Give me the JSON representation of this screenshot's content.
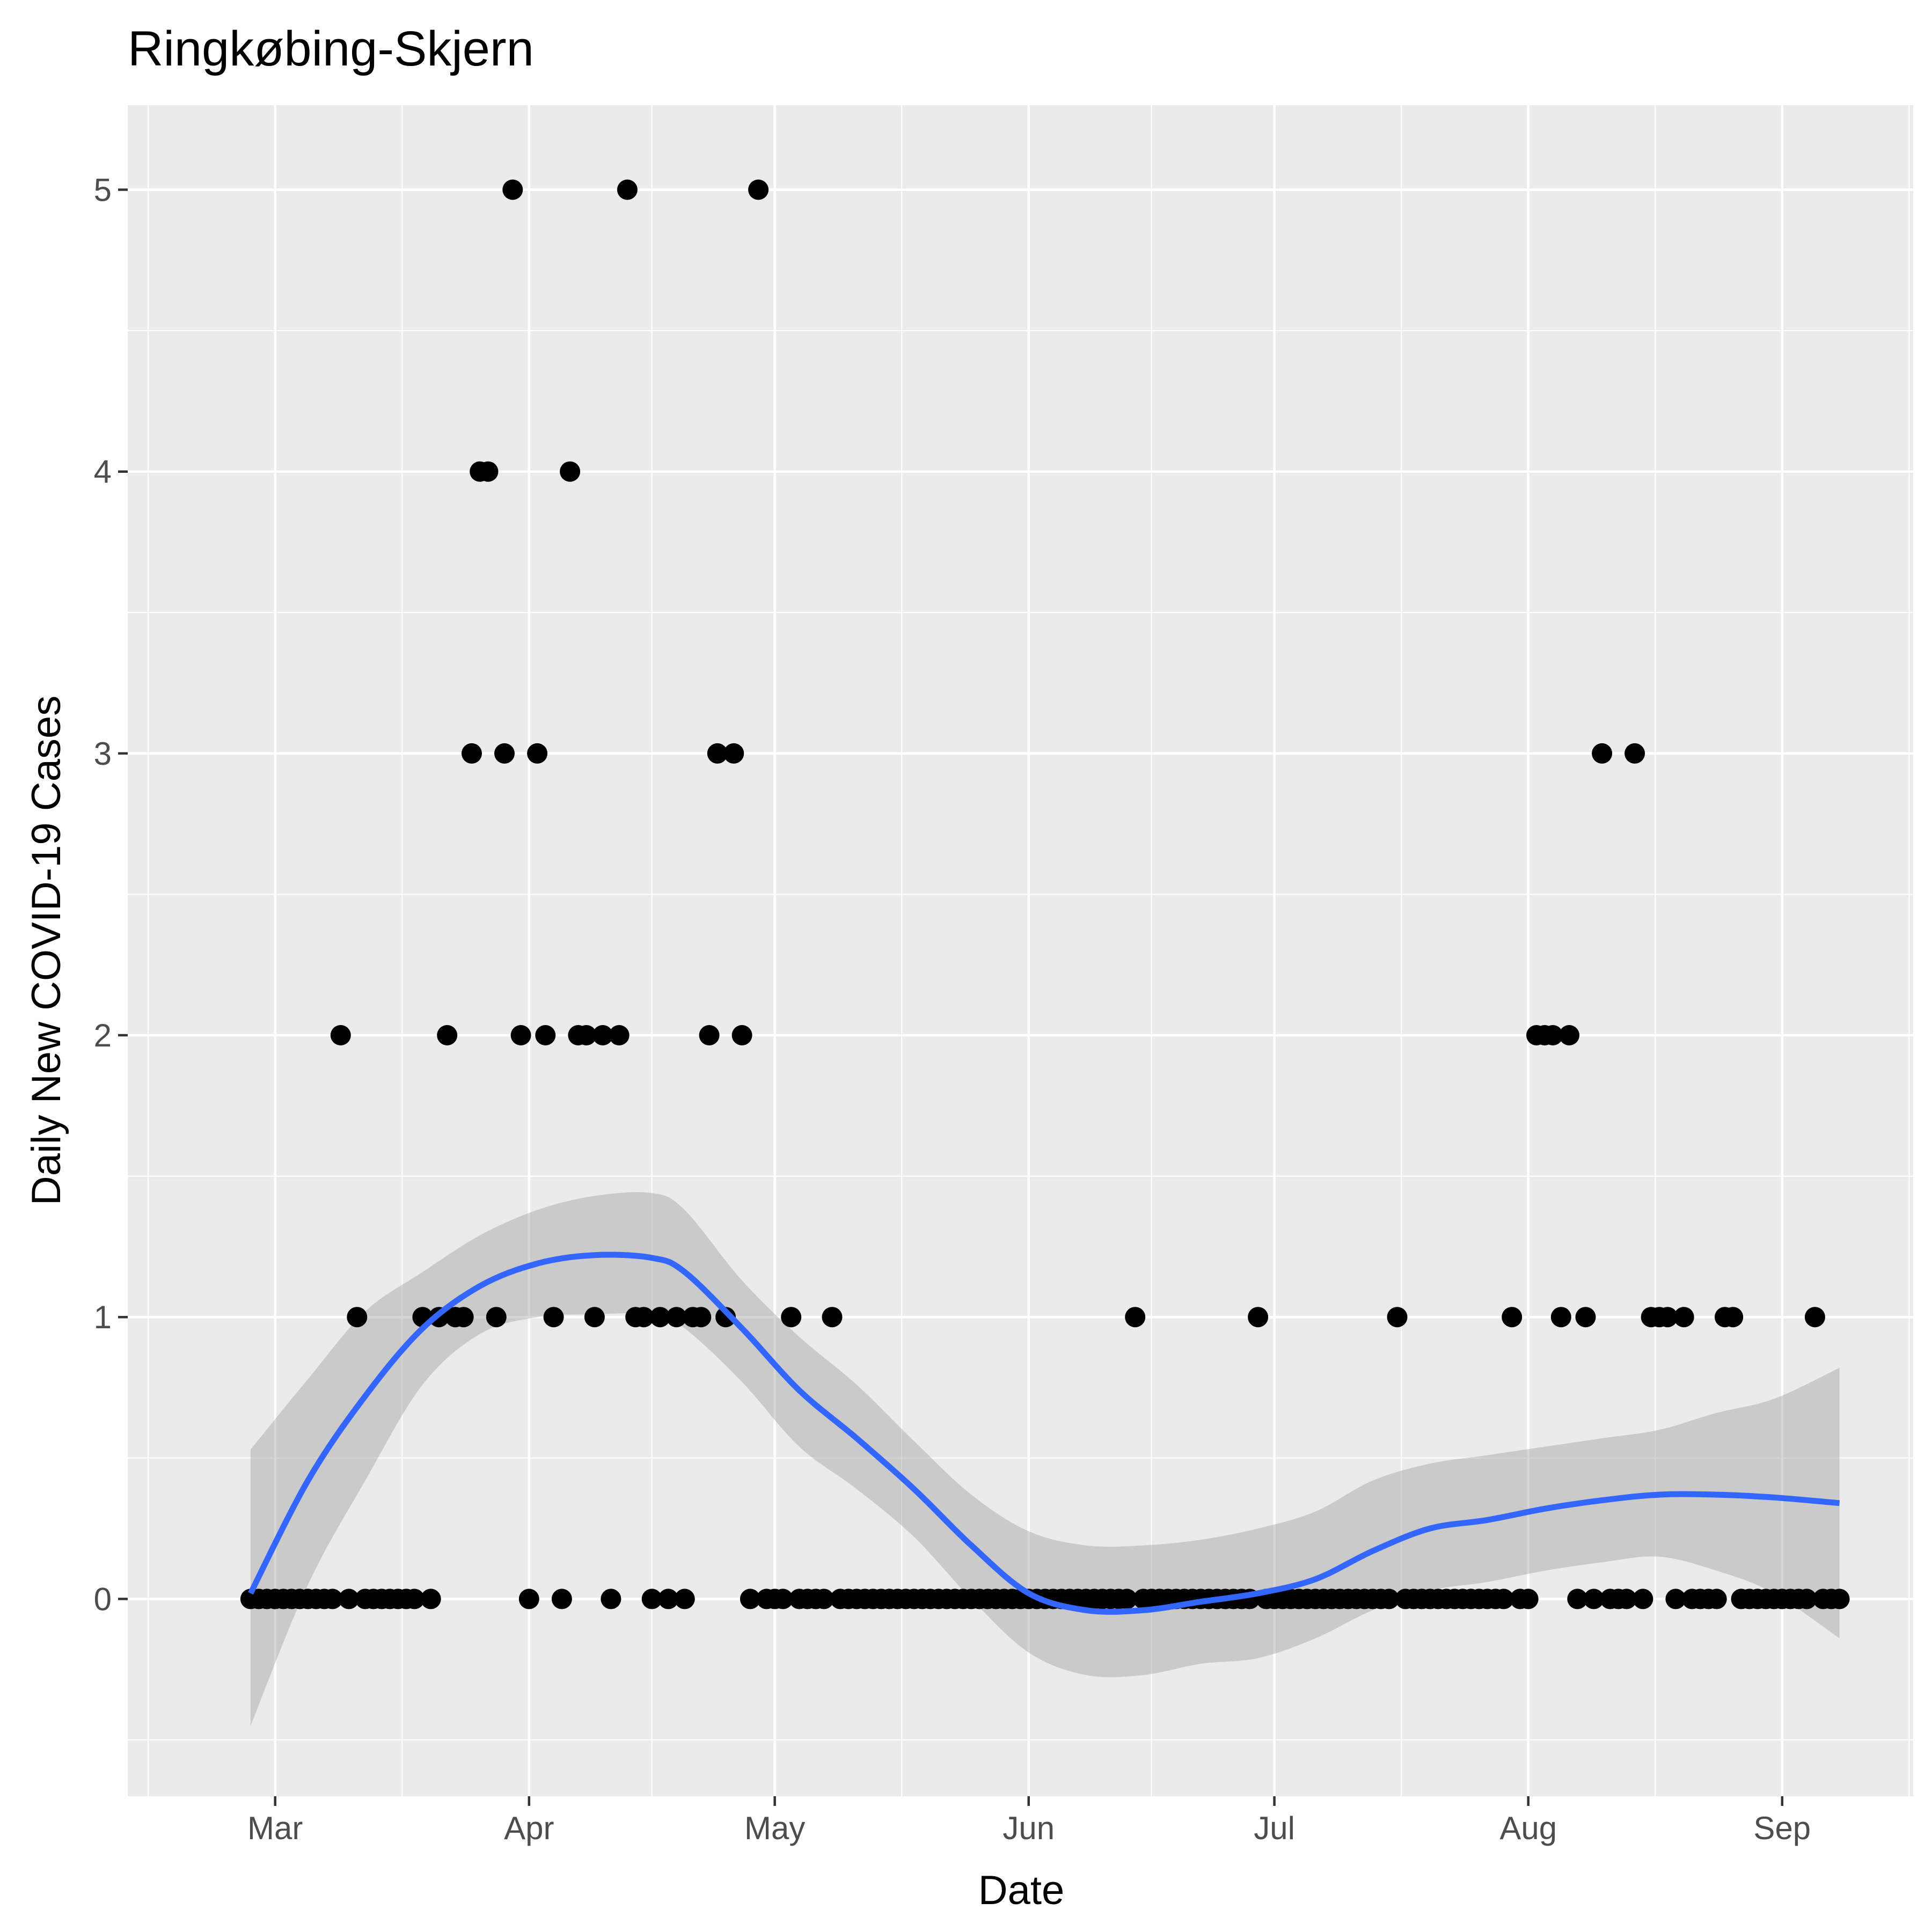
{
  "chart_data": {
    "type": "scatter",
    "title": "Ringkøbing-Skjern",
    "xlabel": "Date",
    "ylabel": "Daily New COVID-19 Cases",
    "x_tick_labels": [
      "Mar",
      "Apr",
      "May",
      "Jun",
      "Jul",
      "Aug",
      "Sep"
    ],
    "x_tick_dates": [
      "2020-03-01",
      "2020-04-01",
      "2020-05-01",
      "2020-06-01",
      "2020-07-01",
      "2020-08-01",
      "2020-09-01"
    ],
    "y_tick_labels": [
      "0",
      "1",
      "2",
      "3",
      "4",
      "5"
    ],
    "y_ticks": [
      0,
      1,
      2,
      3,
      4,
      5
    ],
    "xlim": [
      "2020-02-12",
      "2020-09-17"
    ],
    "ylim": [
      -0.7,
      5.3
    ],
    "grid": true,
    "colors": {
      "panel": "#ebebeb",
      "grid": "#ffffff",
      "points": "#000000",
      "smooth_line": "#3366ff",
      "ribbon": "#999999"
    },
    "series": [
      {
        "type": "points",
        "points": [
          {
            "x": "2020-02-27",
            "y": 0
          },
          {
            "x": "2020-02-28",
            "y": 0
          },
          {
            "x": "2020-02-29",
            "y": 0
          },
          {
            "x": "2020-03-01",
            "y": 0
          },
          {
            "x": "2020-03-02",
            "y": 0
          },
          {
            "x": "2020-03-03",
            "y": 0
          },
          {
            "x": "2020-03-04",
            "y": 0
          },
          {
            "x": "2020-03-05",
            "y": 0
          },
          {
            "x": "2020-03-06",
            "y": 0
          },
          {
            "x": "2020-03-07",
            "y": 0
          },
          {
            "x": "2020-03-08",
            "y": 0
          },
          {
            "x": "2020-03-09",
            "y": 2
          },
          {
            "x": "2020-03-10",
            "y": 0
          },
          {
            "x": "2020-03-11",
            "y": 1
          },
          {
            "x": "2020-03-12",
            "y": 0
          },
          {
            "x": "2020-03-13",
            "y": 0
          },
          {
            "x": "2020-03-14",
            "y": 0
          },
          {
            "x": "2020-03-15",
            "y": 0
          },
          {
            "x": "2020-03-16",
            "y": 0
          },
          {
            "x": "2020-03-17",
            "y": 0
          },
          {
            "x": "2020-03-18",
            "y": 0
          },
          {
            "x": "2020-03-19",
            "y": 1
          },
          {
            "x": "2020-03-20",
            "y": 0
          },
          {
            "x": "2020-03-21",
            "y": 1
          },
          {
            "x": "2020-03-22",
            "y": 2
          },
          {
            "x": "2020-03-23",
            "y": 1
          },
          {
            "x": "2020-03-24",
            "y": 1
          },
          {
            "x": "2020-03-25",
            "y": 3
          },
          {
            "x": "2020-03-26",
            "y": 4
          },
          {
            "x": "2020-03-27",
            "y": 4
          },
          {
            "x": "2020-03-28",
            "y": 1
          },
          {
            "x": "2020-03-29",
            "y": 3
          },
          {
            "x": "2020-03-30",
            "y": 5
          },
          {
            "x": "2020-03-31",
            "y": 2
          },
          {
            "x": "2020-04-01",
            "y": 0
          },
          {
            "x": "2020-04-02",
            "y": 3
          },
          {
            "x": "2020-04-03",
            "y": 2
          },
          {
            "x": "2020-04-04",
            "y": 1
          },
          {
            "x": "2020-04-05",
            "y": 0
          },
          {
            "x": "2020-04-06",
            "y": 4
          },
          {
            "x": "2020-04-07",
            "y": 2
          },
          {
            "x": "2020-04-08",
            "y": 2
          },
          {
            "x": "2020-04-09",
            "y": 1
          },
          {
            "x": "2020-04-10",
            "y": 2
          },
          {
            "x": "2020-04-11",
            "y": 0
          },
          {
            "x": "2020-04-12",
            "y": 2
          },
          {
            "x": "2020-04-13",
            "y": 5
          },
          {
            "x": "2020-04-14",
            "y": 1
          },
          {
            "x": "2020-04-15",
            "y": 1
          },
          {
            "x": "2020-04-16",
            "y": 0
          },
          {
            "x": "2020-04-17",
            "y": 1
          },
          {
            "x": "2020-04-18",
            "y": 0
          },
          {
            "x": "2020-04-19",
            "y": 1
          },
          {
            "x": "2020-04-20",
            "y": 0
          },
          {
            "x": "2020-04-21",
            "y": 1
          },
          {
            "x": "2020-04-22",
            "y": 1
          },
          {
            "x": "2020-04-23",
            "y": 2
          },
          {
            "x": "2020-04-24",
            "y": 3
          },
          {
            "x": "2020-04-25",
            "y": 1
          },
          {
            "x": "2020-04-26",
            "y": 3
          },
          {
            "x": "2020-04-27",
            "y": 2
          },
          {
            "x": "2020-04-28",
            "y": 0
          },
          {
            "x": "2020-04-29",
            "y": 5
          },
          {
            "x": "2020-04-30",
            "y": 0
          },
          {
            "x": "2020-05-01",
            "y": 0
          },
          {
            "x": "2020-05-02",
            "y": 0
          },
          {
            "x": "2020-05-03",
            "y": 1
          },
          {
            "x": "2020-05-04",
            "y": 0
          },
          {
            "x": "2020-05-05",
            "y": 0
          },
          {
            "x": "2020-05-06",
            "y": 0
          },
          {
            "x": "2020-05-07",
            "y": 0
          },
          {
            "x": "2020-05-08",
            "y": 1
          },
          {
            "x": "2020-05-09",
            "y": 0
          },
          {
            "x": "2020-05-10",
            "y": 0
          },
          {
            "x": "2020-05-11",
            "y": 0
          },
          {
            "x": "2020-05-12",
            "y": 0
          },
          {
            "x": "2020-05-13",
            "y": 0
          },
          {
            "x": "2020-05-14",
            "y": 0
          },
          {
            "x": "2020-05-15",
            "y": 0
          },
          {
            "x": "2020-05-16",
            "y": 0
          },
          {
            "x": "2020-05-17",
            "y": 0
          },
          {
            "x": "2020-05-18",
            "y": 0
          },
          {
            "x": "2020-05-19",
            "y": 0
          },
          {
            "x": "2020-05-20",
            "y": 0
          },
          {
            "x": "2020-05-21",
            "y": 0
          },
          {
            "x": "2020-05-22",
            "y": 0
          },
          {
            "x": "2020-05-23",
            "y": 0
          },
          {
            "x": "2020-05-24",
            "y": 0
          },
          {
            "x": "2020-05-25",
            "y": 0
          },
          {
            "x": "2020-05-26",
            "y": 0
          },
          {
            "x": "2020-05-27",
            "y": 0
          },
          {
            "x": "2020-05-28",
            "y": 0
          },
          {
            "x": "2020-05-29",
            "y": 0
          },
          {
            "x": "2020-05-30",
            "y": 0
          },
          {
            "x": "2020-05-31",
            "y": 0
          },
          {
            "x": "2020-06-01",
            "y": 0
          },
          {
            "x": "2020-06-02",
            "y": 0
          },
          {
            "x": "2020-06-03",
            "y": 0
          },
          {
            "x": "2020-06-04",
            "y": 0
          },
          {
            "x": "2020-06-05",
            "y": 0
          },
          {
            "x": "2020-06-06",
            "y": 0
          },
          {
            "x": "2020-06-07",
            "y": 0
          },
          {
            "x": "2020-06-08",
            "y": 0
          },
          {
            "x": "2020-06-09",
            "y": 0
          },
          {
            "x": "2020-06-10",
            "y": 0
          },
          {
            "x": "2020-06-11",
            "y": 0
          },
          {
            "x": "2020-06-12",
            "y": 0
          },
          {
            "x": "2020-06-13",
            "y": 0
          },
          {
            "x": "2020-06-14",
            "y": 1
          },
          {
            "x": "2020-06-15",
            "y": 0
          },
          {
            "x": "2020-06-16",
            "y": 0
          },
          {
            "x": "2020-06-17",
            "y": 0
          },
          {
            "x": "2020-06-18",
            "y": 0
          },
          {
            "x": "2020-06-19",
            "y": 0
          },
          {
            "x": "2020-06-20",
            "y": 0
          },
          {
            "x": "2020-06-21",
            "y": 0
          },
          {
            "x": "2020-06-22",
            "y": 0
          },
          {
            "x": "2020-06-23",
            "y": 0
          },
          {
            "x": "2020-06-24",
            "y": 0
          },
          {
            "x": "2020-06-25",
            "y": 0
          },
          {
            "x": "2020-06-26",
            "y": 0
          },
          {
            "x": "2020-06-27",
            "y": 0
          },
          {
            "x": "2020-06-28",
            "y": 0
          },
          {
            "x": "2020-06-29",
            "y": 1
          },
          {
            "x": "2020-06-30",
            "y": 0
          },
          {
            "x": "2020-07-01",
            "y": 0
          },
          {
            "x": "2020-07-02",
            "y": 0
          },
          {
            "x": "2020-07-03",
            "y": 0
          },
          {
            "x": "2020-07-04",
            "y": 0
          },
          {
            "x": "2020-07-05",
            "y": 0
          },
          {
            "x": "2020-07-06",
            "y": 0
          },
          {
            "x": "2020-07-07",
            "y": 0
          },
          {
            "x": "2020-07-08",
            "y": 0
          },
          {
            "x": "2020-07-09",
            "y": 0
          },
          {
            "x": "2020-07-10",
            "y": 0
          },
          {
            "x": "2020-07-11",
            "y": 0
          },
          {
            "x": "2020-07-12",
            "y": 0
          },
          {
            "x": "2020-07-13",
            "y": 0
          },
          {
            "x": "2020-07-14",
            "y": 0
          },
          {
            "x": "2020-07-15",
            "y": 0
          },
          {
            "x": "2020-07-16",
            "y": 1
          },
          {
            "x": "2020-07-17",
            "y": 0
          },
          {
            "x": "2020-07-18",
            "y": 0
          },
          {
            "x": "2020-07-19",
            "y": 0
          },
          {
            "x": "2020-07-20",
            "y": 0
          },
          {
            "x": "2020-07-21",
            "y": 0
          },
          {
            "x": "2020-07-22",
            "y": 0
          },
          {
            "x": "2020-07-23",
            "y": 0
          },
          {
            "x": "2020-07-24",
            "y": 0
          },
          {
            "x": "2020-07-25",
            "y": 0
          },
          {
            "x": "2020-07-26",
            "y": 0
          },
          {
            "x": "2020-07-27",
            "y": 0
          },
          {
            "x": "2020-07-28",
            "y": 0
          },
          {
            "x": "2020-07-29",
            "y": 0
          },
          {
            "x": "2020-07-30",
            "y": 1
          },
          {
            "x": "2020-07-31",
            "y": 0
          },
          {
            "x": "2020-08-01",
            "y": 0
          },
          {
            "x": "2020-08-02",
            "y": 2
          },
          {
            "x": "2020-08-03",
            "y": 2
          },
          {
            "x": "2020-08-04",
            "y": 2
          },
          {
            "x": "2020-08-05",
            "y": 1
          },
          {
            "x": "2020-08-06",
            "y": 2
          },
          {
            "x": "2020-08-07",
            "y": 0
          },
          {
            "x": "2020-08-08",
            "y": 1
          },
          {
            "x": "2020-08-09",
            "y": 0
          },
          {
            "x": "2020-08-10",
            "y": 3
          },
          {
            "x": "2020-08-11",
            "y": 0
          },
          {
            "x": "2020-08-12",
            "y": 0
          },
          {
            "x": "2020-08-13",
            "y": 0
          },
          {
            "x": "2020-08-14",
            "y": 3
          },
          {
            "x": "2020-08-15",
            "y": 0
          },
          {
            "x": "2020-08-16",
            "y": 1
          },
          {
            "x": "2020-08-17",
            "y": 1
          },
          {
            "x": "2020-08-18",
            "y": 1
          },
          {
            "x": "2020-08-19",
            "y": 0
          },
          {
            "x": "2020-08-20",
            "y": 1
          },
          {
            "x": "2020-08-21",
            "y": 0
          },
          {
            "x": "2020-08-22",
            "y": 0
          },
          {
            "x": "2020-08-23",
            "y": 0
          },
          {
            "x": "2020-08-24",
            "y": 0
          },
          {
            "x": "2020-08-25",
            "y": 1
          },
          {
            "x": "2020-08-26",
            "y": 1
          },
          {
            "x": "2020-08-27",
            "y": 0
          },
          {
            "x": "2020-08-28",
            "y": 0
          },
          {
            "x": "2020-08-29",
            "y": 0
          },
          {
            "x": "2020-08-30",
            "y": 0
          },
          {
            "x": "2020-08-31",
            "y": 0
          },
          {
            "x": "2020-09-01",
            "y": 0
          },
          {
            "x": "2020-09-02",
            "y": 0
          },
          {
            "x": "2020-09-03",
            "y": 0
          },
          {
            "x": "2020-09-04",
            "y": 0
          },
          {
            "x": "2020-09-05",
            "y": 1
          },
          {
            "x": "2020-09-06",
            "y": 0
          },
          {
            "x": "2020-09-07",
            "y": 0
          },
          {
            "x": "2020-09-08",
            "y": 0
          }
        ]
      },
      {
        "type": "smooth",
        "points": [
          {
            "x": "2020-02-27",
            "y": 0.02,
            "lo": -0.45,
            "hi": 0.53
          },
          {
            "x": "2020-03-05",
            "y": 0.42,
            "lo": 0.05,
            "hi": 0.78
          },
          {
            "x": "2020-03-12",
            "y": 0.72,
            "lo": 0.42,
            "hi": 1.02
          },
          {
            "x": "2020-03-19",
            "y": 0.96,
            "lo": 0.76,
            "hi": 1.16
          },
          {
            "x": "2020-03-26",
            "y": 1.11,
            "lo": 0.94,
            "hi": 1.29
          },
          {
            "x": "2020-04-02",
            "y": 1.19,
            "lo": 1.0,
            "hi": 1.38
          },
          {
            "x": "2020-04-09",
            "y": 1.22,
            "lo": 1.01,
            "hi": 1.43
          },
          {
            "x": "2020-04-16",
            "y": 1.21,
            "lo": 1.01,
            "hi": 1.44
          },
          {
            "x": "2020-04-20",
            "y": 1.16,
            "lo": 0.96,
            "hi": 1.38
          },
          {
            "x": "2020-04-27",
            "y": 0.96,
            "lo": 0.77,
            "hi": 1.13
          },
          {
            "x": "2020-05-04",
            "y": 0.74,
            "lo": 0.54,
            "hi": 0.93
          },
          {
            "x": "2020-05-11",
            "y": 0.57,
            "lo": 0.39,
            "hi": 0.76
          },
          {
            "x": "2020-05-18",
            "y": 0.39,
            "lo": 0.22,
            "hi": 0.56
          },
          {
            "x": "2020-05-25",
            "y": 0.19,
            "lo": 0.0,
            "hi": 0.37
          },
          {
            "x": "2020-06-01",
            "y": 0.02,
            "lo": -0.19,
            "hi": 0.24
          },
          {
            "x": "2020-06-08",
            "y": -0.04,
            "lo": -0.27,
            "hi": 0.19
          },
          {
            "x": "2020-06-15",
            "y": -0.04,
            "lo": -0.27,
            "hi": 0.19
          },
          {
            "x": "2020-06-22",
            "y": -0.01,
            "lo": -0.23,
            "hi": 0.21
          },
          {
            "x": "2020-06-29",
            "y": 0.02,
            "lo": -0.21,
            "hi": 0.25
          },
          {
            "x": "2020-07-06",
            "y": 0.07,
            "lo": -0.14,
            "hi": 0.31
          },
          {
            "x": "2020-07-13",
            "y": 0.17,
            "lo": -0.04,
            "hi": 0.42
          },
          {
            "x": "2020-07-20",
            "y": 0.25,
            "lo": 0.03,
            "hi": 0.48
          },
          {
            "x": "2020-07-27",
            "y": 0.28,
            "lo": 0.06,
            "hi": 0.51
          },
          {
            "x": "2020-08-03",
            "y": 0.32,
            "lo": 0.1,
            "hi": 0.54
          },
          {
            "x": "2020-08-10",
            "y": 0.35,
            "lo": 0.13,
            "hi": 0.57
          },
          {
            "x": "2020-08-17",
            "y": 0.37,
            "lo": 0.15,
            "hi": 0.6
          },
          {
            "x": "2020-08-24",
            "y": 0.37,
            "lo": 0.1,
            "hi": 0.66
          },
          {
            "x": "2020-08-31",
            "y": 0.36,
            "lo": 0.02,
            "hi": 0.71
          },
          {
            "x": "2020-09-08",
            "y": 0.34,
            "lo": -0.14,
            "hi": 0.82
          }
        ]
      }
    ]
  }
}
